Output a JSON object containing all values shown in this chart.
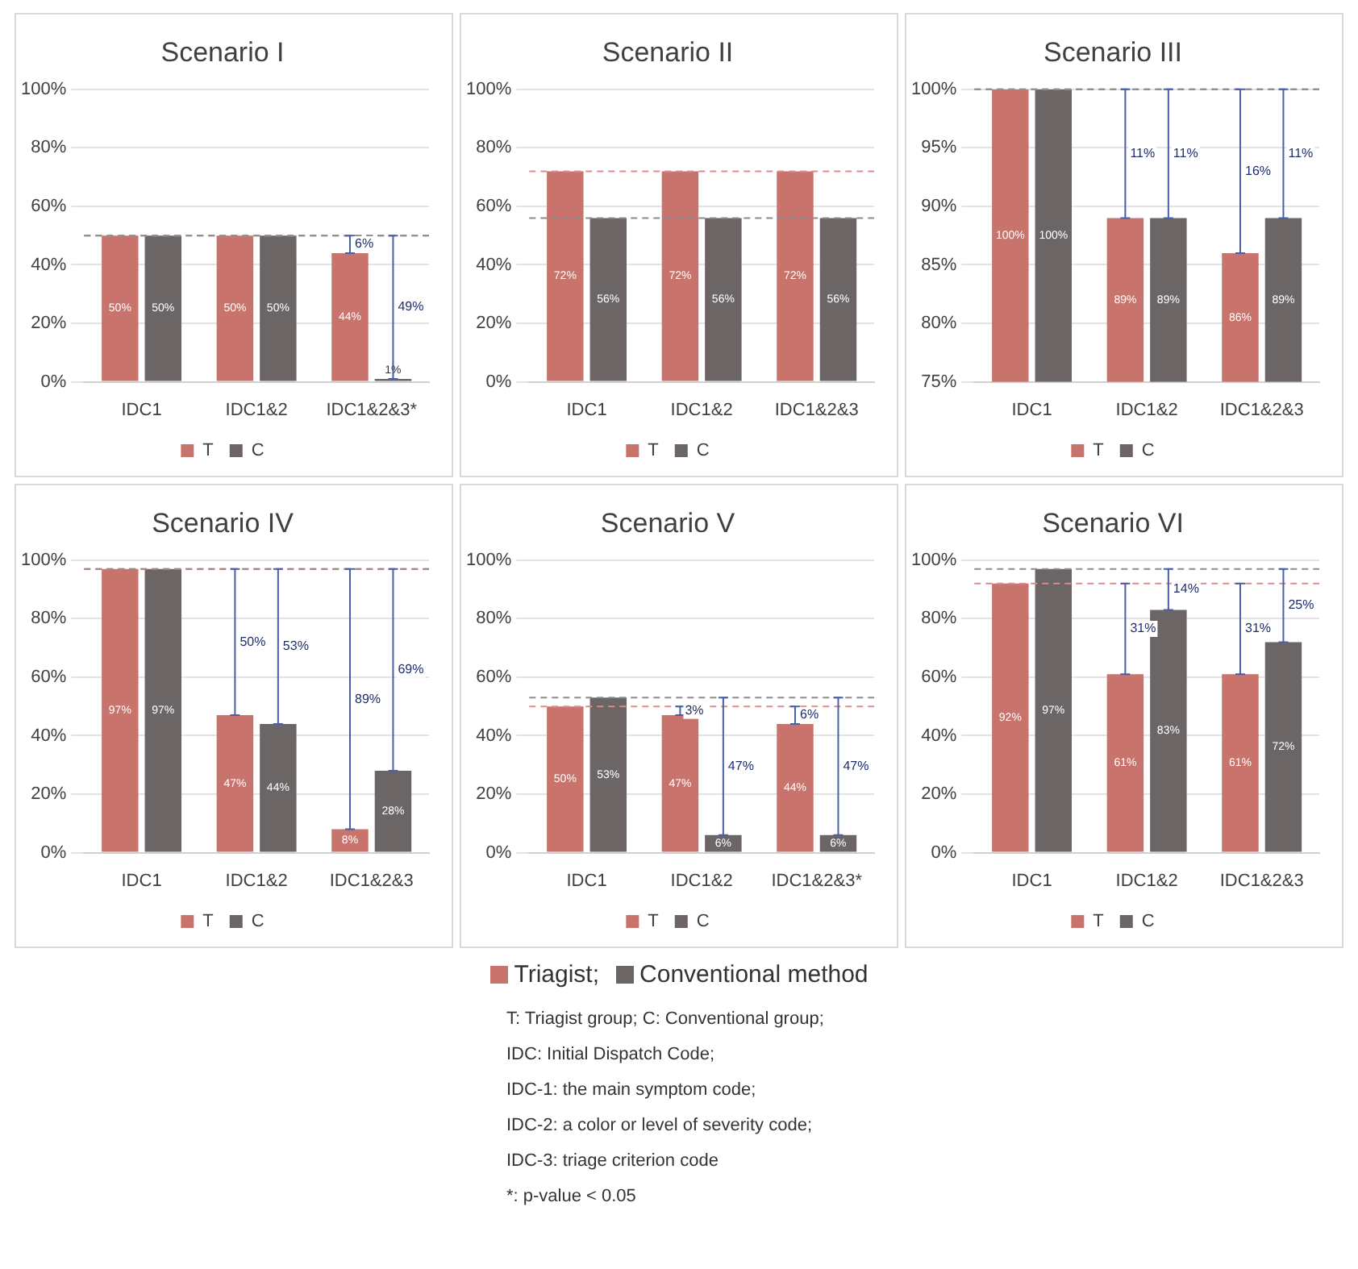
{
  "chart_data": [
    {
      "type": "bar",
      "title": "Scenario I",
      "categories": [
        "IDC1",
        "IDC1&2",
        "IDC1&2&3*"
      ],
      "ylim": [
        0,
        100
      ],
      "yticks": [
        {
          "value": 0,
          "label": "0%"
        },
        {
          "value": 20,
          "label": "20%"
        },
        {
          "value": 40,
          "label": "40%"
        },
        {
          "value": 60,
          "label": "60%"
        },
        {
          "value": 80,
          "label": "80%"
        },
        {
          "value": 100,
          "label": "100%"
        }
      ],
      "grid": "y",
      "legend": "bottom",
      "series": [
        {
          "name": "T",
          "color": "#c8736b",
          "values": [
            50,
            50,
            44
          ],
          "value_labels": [
            "50%",
            "50%",
            "44%"
          ],
          "errors": [
            null,
            null,
            [
              44,
              50
            ]
          ]
        },
        {
          "name": "C",
          "color": "#6b6566",
          "values": [
            50,
            50,
            1
          ],
          "value_labels": [
            "50%",
            "50%",
            "1%"
          ],
          "errors": [
            null,
            null,
            [
              1,
              50
            ]
          ]
        }
      ],
      "ref_lines": [
        {
          "axis": "y",
          "value": 50,
          "color": "#e08b8b",
          "line_style": "dashed"
        },
        {
          "axis": "y",
          "value": 50,
          "color": "#8c8c8c",
          "line_style": "dashed"
        }
      ],
      "annotations": [
        "6%",
        "49%"
      ]
    },
    {
      "type": "bar",
      "title": "Scenario II",
      "categories": [
        "IDC1",
        "IDC1&2",
        "IDC1&2&3"
      ],
      "ylim": [
        0,
        100
      ],
      "yticks": [
        {
          "value": 0,
          "label": "0%"
        },
        {
          "value": 20,
          "label": "20%"
        },
        {
          "value": 40,
          "label": "40%"
        },
        {
          "value": 60,
          "label": "60%"
        },
        {
          "value": 80,
          "label": "80%"
        },
        {
          "value": 100,
          "label": "100%"
        }
      ],
      "grid": "y",
      "legend": "bottom",
      "series": [
        {
          "name": "T",
          "color": "#c8736b",
          "values": [
            72,
            72,
            72
          ],
          "value_labels": [
            "72%",
            "72%",
            "72%"
          ]
        },
        {
          "name": "C",
          "color": "#6b6566",
          "values": [
            56,
            56,
            56
          ],
          "value_labels": [
            "56%",
            "56%",
            "56%"
          ]
        }
      ],
      "ref_lines": [
        {
          "axis": "y",
          "value": 72,
          "color": "#e08b8b",
          "line_style": "dashed"
        },
        {
          "axis": "y",
          "value": 56,
          "color": "#8c8c8c",
          "line_style": "dashed"
        }
      ]
    },
    {
      "type": "bar",
      "title": "Scenario III",
      "categories": [
        "IDC1",
        "IDC1&2",
        "IDC1&2&3"
      ],
      "ylim": [
        75,
        100
      ],
      "yticks": [
        {
          "value": 75,
          "label": "75%"
        },
        {
          "value": 80,
          "label": "80%"
        },
        {
          "value": 85,
          "label": "85%"
        },
        {
          "value": 90,
          "label": "90%"
        },
        {
          "value": 95,
          "label": "95%"
        },
        {
          "value": 100,
          "label": "100%"
        }
      ],
      "grid": "y",
      "legend": "bottom",
      "series": [
        {
          "name": "T",
          "color": "#c8736b",
          "values": [
            100,
            89,
            86
          ],
          "value_labels": [
            "100%",
            "89%",
            "86%"
          ],
          "errors": [
            null,
            [
              89,
              100
            ],
            [
              86,
              100
            ]
          ]
        },
        {
          "name": "C",
          "color": "#6b6566",
          "values": [
            100,
            89,
            89
          ],
          "value_labels": [
            "100%",
            "89%",
            "89%"
          ],
          "errors": [
            null,
            [
              89,
              100
            ],
            [
              89,
              100
            ]
          ]
        }
      ],
      "ref_lines": [
        {
          "axis": "y",
          "value": 100,
          "color": "#e08b8b",
          "line_style": "dashed"
        },
        {
          "axis": "y",
          "value": 100,
          "color": "#8c8c8c",
          "line_style": "dashed"
        }
      ],
      "annotations": [
        "11%",
        "11%",
        "16%",
        "11%"
      ]
    },
    {
      "type": "bar",
      "title": "Scenario IV",
      "categories": [
        "IDC1",
        "IDC1&2",
        "IDC1&2&3"
      ],
      "ylim": [
        0,
        100
      ],
      "yticks": [
        {
          "value": 0,
          "label": "0%"
        },
        {
          "value": 20,
          "label": "20%"
        },
        {
          "value": 40,
          "label": "40%"
        },
        {
          "value": 60,
          "label": "60%"
        },
        {
          "value": 80,
          "label": "80%"
        },
        {
          "value": 100,
          "label": "100%"
        }
      ],
      "grid": "y",
      "legend": "bottom",
      "series": [
        {
          "name": "T",
          "color": "#c8736b",
          "values": [
            97,
            47,
            8
          ],
          "value_labels": [
            "97%",
            "47%",
            "8%"
          ],
          "errors": [
            null,
            [
              47,
              97
            ],
            [
              8,
              97
            ]
          ]
        },
        {
          "name": "C",
          "color": "#6b6566",
          "values": [
            97,
            44,
            28
          ],
          "value_labels": [
            "97%",
            "44%",
            "28%"
          ],
          "errors": [
            null,
            [
              44,
              97
            ],
            [
              28,
              97
            ]
          ]
        }
      ],
      "ref_lines": [
        {
          "axis": "y",
          "value": 97,
          "color": "#e08b8b",
          "line_style": "dashed"
        },
        {
          "axis": "y",
          "value": 97,
          "color": "#8c8c8c",
          "line_style": "dashed"
        }
      ],
      "annotations": [
        "50%",
        "53%",
        "89%",
        "69%"
      ]
    },
    {
      "type": "bar",
      "title": "Scenario V",
      "categories": [
        "IDC1",
        "IDC1&2",
        "IDC1&2&3*"
      ],
      "ylim": [
        0,
        100
      ],
      "yticks": [
        {
          "value": 0,
          "label": "0%"
        },
        {
          "value": 20,
          "label": "20%"
        },
        {
          "value": 40,
          "label": "40%"
        },
        {
          "value": 60,
          "label": "60%"
        },
        {
          "value": 80,
          "label": "80%"
        },
        {
          "value": 100,
          "label": "100%"
        }
      ],
      "grid": "y",
      "legend": "bottom",
      "series": [
        {
          "name": "T",
          "color": "#c8736b",
          "values": [
            50,
            47,
            44
          ],
          "value_labels": [
            "50%",
            "47%",
            "44%"
          ],
          "errors": [
            null,
            [
              47,
              50
            ],
            [
              44,
              50
            ]
          ]
        },
        {
          "name": "C",
          "color": "#6b6566",
          "values": [
            53,
            6,
            6
          ],
          "value_labels": [
            "53%",
            "6%",
            "6%"
          ],
          "errors": [
            null,
            [
              6,
              53
            ],
            [
              6,
              53
            ]
          ]
        }
      ],
      "ref_lines": [
        {
          "axis": "y",
          "value": 50,
          "color": "#e08b8b",
          "line_style": "dashed"
        },
        {
          "axis": "y",
          "value": 53,
          "color": "#8c8c8c",
          "line_style": "dashed"
        }
      ],
      "annotations": [
        "3%",
        "47%",
        "6%",
        "47%"
      ]
    },
    {
      "type": "bar",
      "title": "Scenario VI",
      "categories": [
        "IDC1",
        "IDC1&2",
        "IDC1&2&3"
      ],
      "ylim": [
        0,
        100
      ],
      "yticks": [
        {
          "value": 0,
          "label": "0%"
        },
        {
          "value": 20,
          "label": "20%"
        },
        {
          "value": 40,
          "label": "40%"
        },
        {
          "value": 60,
          "label": "60%"
        },
        {
          "value": 80,
          "label": "80%"
        },
        {
          "value": 100,
          "label": "100%"
        }
      ],
      "grid": "y",
      "legend": "bottom",
      "series": [
        {
          "name": "T",
          "color": "#c8736b",
          "values": [
            92,
            61,
            61
          ],
          "value_labels": [
            "92%",
            "61%",
            "61%"
          ],
          "errors": [
            null,
            [
              61,
              92
            ],
            [
              61,
              92
            ]
          ]
        },
        {
          "name": "C",
          "color": "#6b6566",
          "values": [
            97,
            83,
            72
          ],
          "value_labels": [
            "97%",
            "83%",
            "72%"
          ],
          "errors": [
            null,
            [
              83,
              97
            ],
            [
              72,
              97
            ]
          ]
        }
      ],
      "ref_lines": [
        {
          "axis": "y",
          "value": 92,
          "color": "#e08b8b",
          "line_style": "dashed"
        },
        {
          "axis": "y",
          "value": 97,
          "color": "#8c8c8c",
          "line_style": "dashed"
        }
      ],
      "annotations": [
        "31%",
        "14%",
        "31%",
        "25%"
      ]
    },
    {
      "type": "other",
      "legend": "top",
      "series": [
        {
          "name": "Triagist;",
          "color": "#c8736b"
        },
        {
          "name": "Conventional method",
          "color": "#6b6566"
        }
      ],
      "annotations": [
        "T: Triagist group; C: Conventional group;",
        "IDC: Initial Dispatch Code;",
        "IDC-1: the main symptom code;",
        "IDC-2: a color or level of severity code;",
        "IDC-3: triage criterion code",
        "*: p-value < 0.05"
      ]
    }
  ]
}
